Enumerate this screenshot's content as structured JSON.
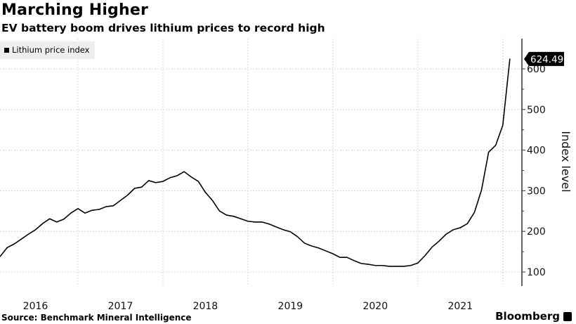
{
  "header": {
    "title": "Marching Higher",
    "subtitle": "EV battery boom drives lithium prices to record high"
  },
  "footer": {
    "source": "Source: Benchmark Mineral Intelligence",
    "brand": "Bloomberg"
  },
  "chart_data": {
    "type": "line",
    "title": "Marching Higher",
    "subtitle": "EV battery boom drives lithium prices to record high",
    "xlabel": "",
    "ylabel": "Index level",
    "ylim": [
      70,
      680
    ],
    "yticks": [
      100,
      200,
      300,
      400,
      500,
      600
    ],
    "xtick_labels": [
      "2016",
      "2017",
      "2018",
      "2019",
      "2020",
      "2021"
    ],
    "grid": true,
    "legend": {
      "position": "top-left",
      "entries": [
        "Lithium price index"
      ]
    },
    "last_value_label": "624.49",
    "series": [
      {
        "name": "Lithium price index",
        "color": "#000000",
        "start_month": "2016-02",
        "frequency": "monthly",
        "values": [
          138,
          160,
          169,
          181,
          193,
          204,
          219,
          231,
          223,
          230,
          245,
          256,
          245,
          252,
          254,
          261,
          263,
          276,
          289,
          306,
          309,
          325,
          320,
          323,
          332,
          337,
          347,
          334,
          323,
          296,
          276,
          250,
          240,
          237,
          231,
          225,
          223,
          223,
          218,
          211,
          204,
          199,
          187,
          171,
          164,
          159,
          152,
          145,
          136,
          136,
          128,
          121,
          119,
          116,
          116,
          114,
          114,
          114,
          116,
          122,
          140,
          161,
          176,
          193,
          204,
          209,
          219,
          247,
          302,
          395,
          412,
          461,
          624.49
        ]
      }
    ]
  }
}
